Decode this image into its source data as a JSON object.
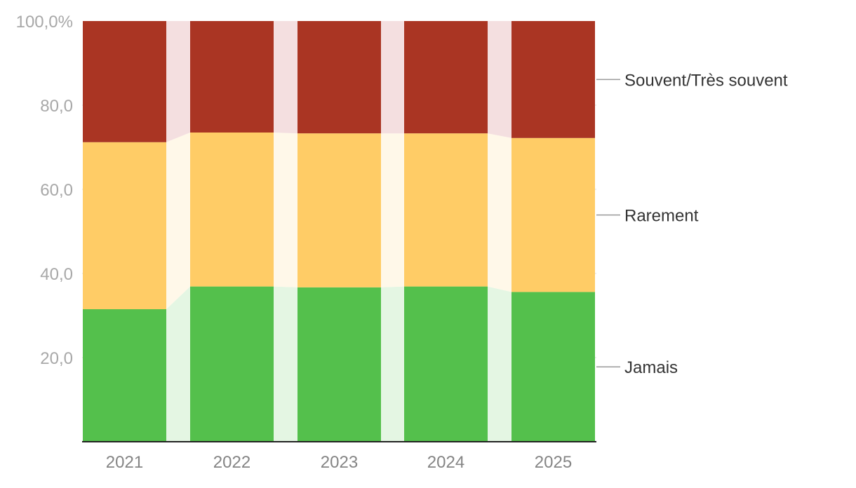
{
  "chart_data": {
    "type": "bar",
    "stacked": true,
    "categories": [
      "2021",
      "2022",
      "2023",
      "2024",
      "2025"
    ],
    "series": [
      {
        "name": "Jamais",
        "color": "#54c04c",
        "values": [
          31.5,
          36.9,
          36.7,
          36.9,
          35.6
        ]
      },
      {
        "name": "Rarement",
        "color": "#ffcc66",
        "values": [
          39.7,
          36.6,
          36.6,
          36.4,
          36.6
        ]
      },
      {
        "name": "Souvent/Très souvent",
        "color": "#aa3523",
        "values": [
          28.8,
          26.5,
          26.7,
          26.7,
          27.8
        ]
      }
    ],
    "y_ticks": [
      "20,0",
      "40,0",
      "60,0",
      "80,0",
      "100,0%"
    ],
    "y_tick_values": [
      20,
      40,
      60,
      80,
      100
    ],
    "ylim": [
      0,
      100
    ],
    "grid": true,
    "legend_placement": "right, labels connected to series",
    "connector_colors": [
      "#e4f6e3",
      "#fff8e9",
      "#f4dfe0"
    ]
  }
}
